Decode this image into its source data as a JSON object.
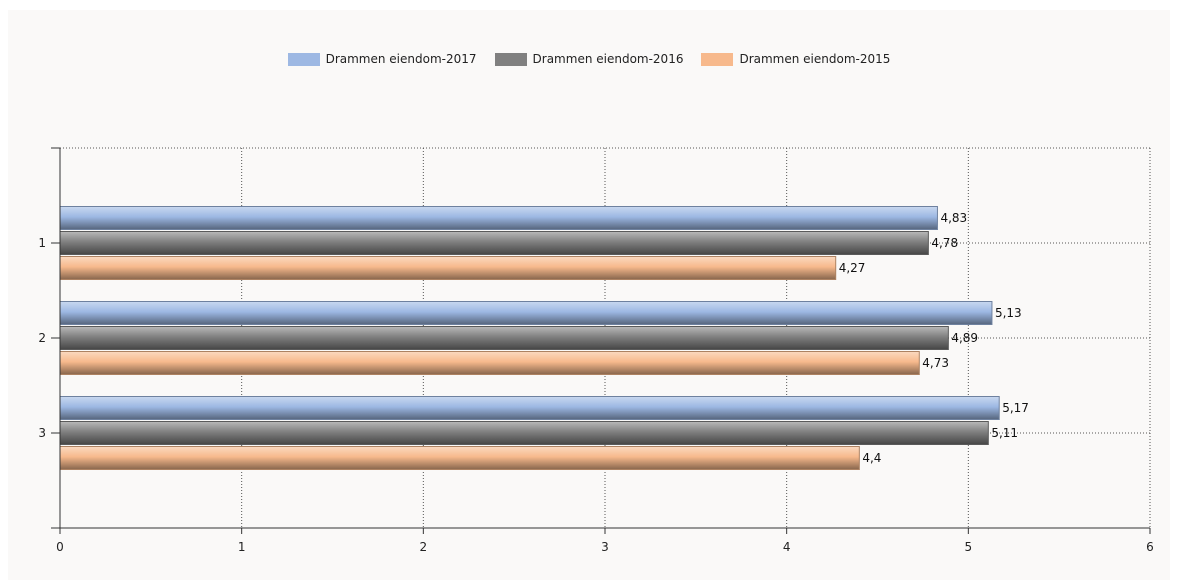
{
  "chart_data": {
    "type": "bar",
    "orientation": "horizontal",
    "categories": [
      "1",
      "2",
      "3"
    ],
    "series": [
      {
        "name": "Drammen eiendom-2017",
        "color": "#9db8e3",
        "values": [
          4.83,
          5.13,
          5.17
        ],
        "labels": [
          "4,83",
          "5,13",
          "5,17"
        ]
      },
      {
        "name": "Drammen eiendom-2016",
        "color": "#808080",
        "values": [
          4.78,
          4.89,
          5.11
        ],
        "labels": [
          "4,78",
          "4,89",
          "5,11"
        ]
      },
      {
        "name": "Drammen eiendom-2015",
        "color": "#f7b98c",
        "values": [
          4.27,
          4.73,
          4.4
        ],
        "labels": [
          "4,27",
          "4,73",
          "4,4"
        ]
      }
    ],
    "xlim": [
      0,
      6
    ],
    "xticks": [
      0,
      1,
      2,
      3,
      4,
      5,
      6
    ],
    "xtick_labels": [
      "0",
      "1",
      "2",
      "3",
      "4",
      "5",
      "6"
    ],
    "grid": true,
    "legend_position": "top-center",
    "title": "",
    "xlabel": "",
    "ylabel": ""
  }
}
